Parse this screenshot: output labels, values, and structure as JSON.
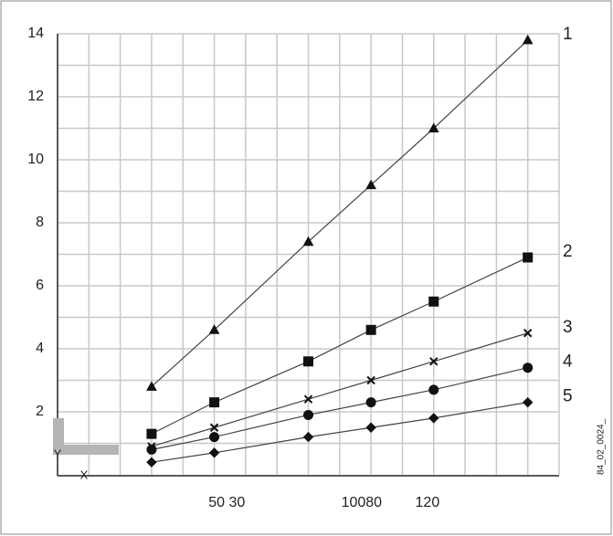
{
  "chart_data": {
    "type": "line",
    "x": [
      3,
      5,
      8,
      10,
      12,
      15
    ],
    "xlim": [
      0,
      16
    ],
    "xticks": [
      {
        "value": 5.4,
        "label": "50 30"
      },
      {
        "value": 9.7,
        "label": "10080"
      },
      {
        "value": 11.8,
        "label": "120"
      }
    ],
    "ylim": [
      0,
      14
    ],
    "yticks": [
      2,
      4,
      6,
      8,
      10,
      12,
      14
    ],
    "xgrid": [
      1,
      2,
      3,
      4,
      5,
      6,
      7,
      8,
      9,
      10,
      11,
      12,
      13,
      14,
      15,
      16
    ],
    "ygrid": [
      1,
      2,
      3,
      4,
      5,
      6,
      7,
      8,
      9,
      10,
      11,
      12,
      13,
      14
    ],
    "grid": true,
    "series": [
      {
        "name": "1",
        "color": "#111111",
        "marker": "triangle",
        "values": [
          2.8,
          4.6,
          7.4,
          9.2,
          11.0,
          13.8
        ]
      },
      {
        "name": "2",
        "color": "#111111",
        "marker": "square",
        "values": [
          1.3,
          2.3,
          3.6,
          4.6,
          5.5,
          6.9
        ]
      },
      {
        "name": "3",
        "color": "#111111",
        "marker": "cross",
        "values": [
          0.9,
          1.5,
          2.4,
          3.0,
          3.6,
          4.5
        ]
      },
      {
        "name": "4",
        "color": "#111111",
        "marker": "circle",
        "values": [
          0.8,
          1.2,
          1.9,
          2.3,
          2.7,
          3.4
        ]
      },
      {
        "name": "5",
        "color": "#111111",
        "marker": "diamond",
        "values": [
          0.4,
          0.7,
          1.2,
          1.5,
          1.8,
          2.3
        ]
      }
    ]
  },
  "corner_icon": {
    "y_label": "Y",
    "x_label": "X"
  },
  "figure_id": "84_02_0024_"
}
